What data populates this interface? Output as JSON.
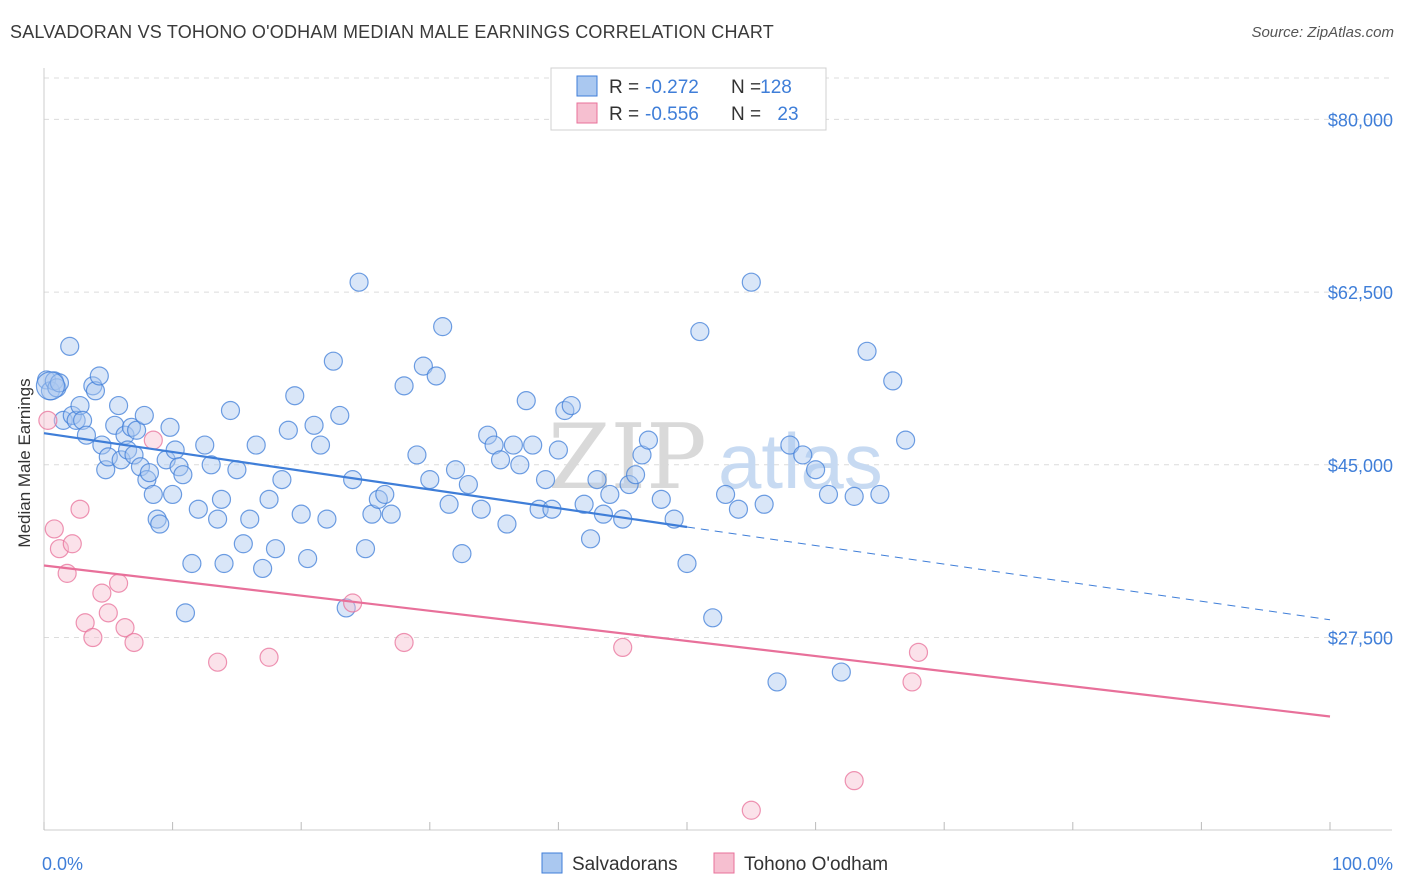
{
  "title": "SALVADORAN VS TOHONO O'ODHAM MEDIAN MALE EARNINGS CORRELATION CHART",
  "source": "Source: ZipAtlas.com",
  "watermark": {
    "zip": "ZIP",
    "atlas": "atlas"
  },
  "colors": {
    "blue": "#3f7ed8",
    "pink": "#e8709a",
    "blue_fill": "#aac8f0",
    "pink_fill": "#f6bfd0"
  },
  "legend": {
    "rows": [
      {
        "r_label": "R =",
        "r_value": "-0.272",
        "n_label": "N =",
        "n_value": "128"
      },
      {
        "r_label": "R =",
        "r_value": "-0.556",
        "n_label": "N =",
        "n_value": "23"
      }
    ]
  },
  "chart_data": {
    "type": "scatter",
    "title": "SALVADORAN VS TOHONO O'ODHAM MEDIAN MALE EARNINGS CORRELATION CHART",
    "xlabel": "",
    "ylabel": "Median Male Earnings",
    "xlim": [
      0,
      100
    ],
    "ylim": [
      8000,
      85000
    ],
    "x_tick_labels": [
      "0.0%",
      "100.0%"
    ],
    "y_ticks": [
      27500,
      45000,
      62500,
      80000
    ],
    "y_tick_labels": [
      "$27,500",
      "$45,000",
      "$62,500",
      "$80,000"
    ],
    "grid": true,
    "legend_position": "top-center",
    "series": [
      {
        "name": "Salvadorans",
        "color": "#3f7ed8",
        "trend": {
          "x": [
            0,
            50
          ],
          "y": [
            48200,
            38700
          ],
          "dashed_to": [
            100,
            29300
          ]
        },
        "points": [
          [
            0.2,
            53.6
          ],
          [
            0.5,
            52.5
          ],
          [
            0.8,
            53.5
          ],
          [
            1.0,
            52.8
          ],
          [
            1.2,
            53.3
          ],
          [
            1.5,
            49.5
          ],
          [
            2.0,
            57.0
          ],
          [
            2.2,
            50.0
          ],
          [
            2.5,
            49.5
          ],
          [
            2.8,
            51.0
          ],
          [
            3.0,
            49.5
          ],
          [
            3.3,
            48.0
          ],
          [
            3.8,
            53.0
          ],
          [
            4.0,
            52.5
          ],
          [
            4.3,
            54.0
          ],
          [
            4.5,
            47.0
          ],
          [
            4.8,
            44.5
          ],
          [
            5.0,
            45.8
          ],
          [
            5.5,
            49.0
          ],
          [
            5.8,
            51.0
          ],
          [
            6.0,
            45.5
          ],
          [
            6.3,
            48.0
          ],
          [
            6.5,
            46.5
          ],
          [
            6.8,
            48.8
          ],
          [
            7.0,
            46.0
          ],
          [
            7.2,
            48.5
          ],
          [
            7.5,
            44.8
          ],
          [
            7.8,
            50.0
          ],
          [
            8.0,
            43.5
          ],
          [
            8.2,
            44.2
          ],
          [
            8.5,
            42.0
          ],
          [
            8.8,
            39.5
          ],
          [
            9.0,
            39.0
          ],
          [
            9.5,
            45.5
          ],
          [
            9.8,
            48.8
          ],
          [
            10.0,
            42.0
          ],
          [
            10.2,
            46.5
          ],
          [
            10.5,
            44.8
          ],
          [
            10.8,
            44.0
          ],
          [
            11.0,
            30.0
          ],
          [
            11.5,
            35.0
          ],
          [
            12.0,
            40.5
          ],
          [
            12.5,
            47.0
          ],
          [
            13.0,
            45.0
          ],
          [
            13.5,
            39.5
          ],
          [
            13.8,
            41.5
          ],
          [
            14.0,
            35.0
          ],
          [
            14.5,
            50.5
          ],
          [
            15.0,
            44.5
          ],
          [
            15.5,
            37.0
          ],
          [
            16.0,
            39.5
          ],
          [
            16.5,
            47.0
          ],
          [
            17.0,
            34.5
          ],
          [
            17.5,
            41.5
          ],
          [
            18.0,
            36.5
          ],
          [
            18.5,
            43.5
          ],
          [
            19.0,
            48.5
          ],
          [
            19.5,
            52.0
          ],
          [
            20.0,
            40.0
          ],
          [
            20.5,
            35.5
          ],
          [
            21.0,
            49.0
          ],
          [
            21.5,
            47.0
          ],
          [
            22.0,
            39.5
          ],
          [
            22.5,
            55.5
          ],
          [
            23.0,
            50.0
          ],
          [
            23.5,
            30.5
          ],
          [
            24.0,
            43.5
          ],
          [
            24.5,
            63.5
          ],
          [
            25.0,
            36.5
          ],
          [
            25.5,
            40.0
          ],
          [
            26.0,
            41.5
          ],
          [
            26.5,
            42.0
          ],
          [
            27.0,
            40.0
          ],
          [
            28.0,
            53.0
          ],
          [
            29.0,
            46.0
          ],
          [
            29.5,
            55.0
          ],
          [
            30.0,
            43.5
          ],
          [
            30.5,
            54.0
          ],
          [
            31.0,
            59.0
          ],
          [
            31.5,
            41.0
          ],
          [
            32.0,
            44.5
          ],
          [
            32.5,
            36.0
          ],
          [
            33.0,
            43.0
          ],
          [
            34.0,
            40.5
          ],
          [
            34.5,
            48.0
          ],
          [
            35.0,
            47.0
          ],
          [
            35.5,
            45.5
          ],
          [
            36.0,
            39.0
          ],
          [
            36.5,
            47.0
          ],
          [
            37.0,
            45.0
          ],
          [
            37.5,
            51.5
          ],
          [
            38.0,
            47.0
          ],
          [
            38.5,
            40.5
          ],
          [
            39.0,
            43.5
          ],
          [
            39.5,
            40.5
          ],
          [
            40.0,
            46.5
          ],
          [
            40.5,
            50.5
          ],
          [
            41.0,
            51.0
          ],
          [
            42.0,
            41.0
          ],
          [
            42.5,
            37.5
          ],
          [
            43.0,
            43.5
          ],
          [
            43.5,
            40.0
          ],
          [
            44.0,
            42.0
          ],
          [
            45.0,
            39.5
          ],
          [
            45.5,
            43.0
          ],
          [
            46.0,
            44.0
          ],
          [
            46.5,
            46.0
          ],
          [
            47.0,
            47.5
          ],
          [
            48.0,
            41.5
          ],
          [
            49.0,
            39.5
          ],
          [
            50.0,
            35.0
          ],
          [
            51.0,
            58.5
          ],
          [
            52.0,
            29.5
          ],
          [
            53.0,
            42.0
          ],
          [
            54.0,
            40.5
          ],
          [
            55.0,
            63.5
          ],
          [
            56.0,
            41.0
          ],
          [
            57.0,
            23.0
          ],
          [
            58.0,
            47.0
          ],
          [
            59.0,
            46.0
          ],
          [
            60.0,
            44.5
          ],
          [
            61.0,
            42.0
          ],
          [
            62.0,
            24.0
          ],
          [
            63.0,
            41.8
          ],
          [
            64.0,
            56.5
          ],
          [
            65.0,
            42.0
          ],
          [
            66.0,
            53.5
          ],
          [
            67.0,
            47.5
          ]
        ]
      },
      {
        "name": "Tohono O'odham",
        "color": "#e8709a",
        "trend": {
          "x": [
            0,
            100
          ],
          "y": [
            34800,
            19500
          ]
        },
        "points": [
          [
            0.3,
            49.5
          ],
          [
            0.8,
            38.5
          ],
          [
            1.2,
            36.5
          ],
          [
            1.8,
            34.0
          ],
          [
            2.2,
            37.0
          ],
          [
            2.8,
            40.5
          ],
          [
            3.2,
            29.0
          ],
          [
            3.8,
            27.5
          ],
          [
            4.5,
            32.0
          ],
          [
            5.0,
            30.0
          ],
          [
            5.8,
            33.0
          ],
          [
            6.3,
            28.5
          ],
          [
            7.0,
            27.0
          ],
          [
            8.5,
            47.5
          ],
          [
            13.5,
            25.0
          ],
          [
            17.5,
            25.5
          ],
          [
            24.0,
            31.0
          ],
          [
            28.0,
            27.0
          ],
          [
            45.0,
            26.5
          ],
          [
            55.0,
            10.0
          ],
          [
            63.0,
            13.0
          ],
          [
            67.5,
            23.0
          ],
          [
            68.0,
            26.0
          ]
        ]
      }
    ]
  },
  "bottom_legend": [
    {
      "label": "Salvadorans"
    },
    {
      "label": "Tohono O'odham"
    }
  ]
}
